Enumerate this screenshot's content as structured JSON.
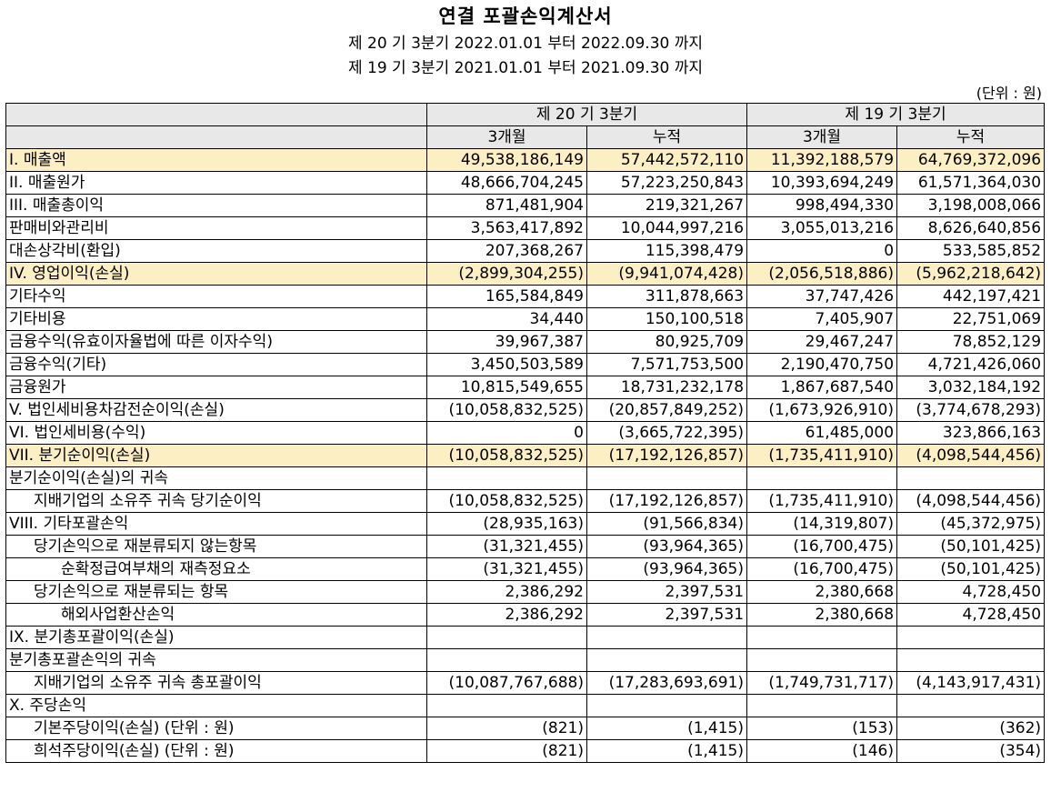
{
  "title": "연결 포괄손익계산서",
  "period_current": "제 20 기 3분기 2022.01.01 부터 2022.09.30 까지",
  "period_prior": "제 19 기 3분기 2021.01.01 부터 2021.09.30 까지",
  "unit": "(단위 : 원)",
  "headers": {
    "current_group": "제 20 기 3분기",
    "prior_group": "제 19 기 3분기",
    "three_month": "3개월",
    "cumulative": "누적"
  },
  "rows": [
    {
      "label": "I. 매출액",
      "values": [
        "49,538,186,149",
        "57,442,572,110",
        "11,392,188,579",
        "64,769,372,096"
      ]
    },
    {
      "label": "II. 매출원가",
      "values": [
        "48,666,704,245",
        "57,223,250,843",
        "10,393,694,249",
        "61,571,364,030"
      ]
    },
    {
      "label": "III. 매출총이익",
      "values": [
        "871,481,904",
        "219,321,267",
        "998,494,330",
        "3,198,008,066"
      ]
    },
    {
      "label": "판매비와관리비",
      "values": [
        "3,563,417,892",
        "10,044,997,216",
        "3,055,013,216",
        "8,626,640,856"
      ]
    },
    {
      "label": "대손상각비(환입)",
      "values": [
        "207,368,267",
        "115,398,479",
        "0",
        "533,585,852"
      ]
    },
    {
      "label": "IV. 영업이익(손실)",
      "values": [
        "(2,899,304,255)",
        "(9,941,074,428)",
        "(2,056,518,886)",
        "(5,962,218,642)"
      ]
    },
    {
      "label": "기타수익",
      "values": [
        "165,584,849",
        "311,878,663",
        "37,747,426",
        "442,197,421"
      ]
    },
    {
      "label": "기타비용",
      "values": [
        "34,440",
        "150,100,518",
        "7,405,907",
        "22,751,069"
      ]
    },
    {
      "label": "금융수익(유효이자율법에 따른 이자수익)",
      "values": [
        "39,967,387",
        "80,925,709",
        "29,467,247",
        "78,852,129"
      ]
    },
    {
      "label": "금융수익(기타)",
      "values": [
        "3,450,503,589",
        "7,571,753,500",
        "2,190,470,750",
        "4,721,426,060"
      ]
    },
    {
      "label": "금융원가",
      "values": [
        "10,815,549,655",
        "18,731,232,178",
        "1,867,687,540",
        "3,032,184,192"
      ]
    },
    {
      "label": "V. 법인세비용차감전순이익(손실)",
      "values": [
        "(10,058,832,525)",
        "(20,857,849,252)",
        "(1,673,926,910)",
        "(3,774,678,293)"
      ]
    },
    {
      "label": "VI. 법인세비용(수익)",
      "values": [
        "0",
        "(3,665,722,395)",
        "61,485,000",
        "323,866,163"
      ]
    },
    {
      "label": "VII. 분기순이익(손실)",
      "values": [
        "(10,058,832,525)",
        "(17,192,126,857)",
        "(1,735,411,910)",
        "(4,098,544,456)"
      ]
    },
    {
      "label": "분기순이익(손실)의 귀속",
      "values": [
        "",
        "",
        "",
        ""
      ]
    },
    {
      "label": "지배기업의 소유주 귀속 당기순이익",
      "values": [
        "(10,058,832,525)",
        "(17,192,126,857)",
        "(1,735,411,910)",
        "(4,098,544,456)"
      ]
    },
    {
      "label": "VIII. 기타포괄손익",
      "values": [
        "(28,935,163)",
        "(91,566,834)",
        "(14,319,807)",
        "(45,372,975)"
      ]
    },
    {
      "label": "당기손익으로 재분류되지 않는항목",
      "values": [
        "(31,321,455)",
        "(93,964,365)",
        "(16,700,475)",
        "(50,101,425)"
      ]
    },
    {
      "label": "순확정급여부채의 재측정요소",
      "values": [
        "(31,321,455)",
        "(93,964,365)",
        "(16,700,475)",
        "(50,101,425)"
      ]
    },
    {
      "label": "당기손익으로 재분류되는 항목",
      "values": [
        "2,386,292",
        "2,397,531",
        "2,380,668",
        "4,728,450"
      ]
    },
    {
      "label": "해외사업환산손익",
      "values": [
        "2,386,292",
        "2,397,531",
        "2,380,668",
        "4,728,450"
      ]
    },
    {
      "label": "IX. 분기총포괄이익(손실)",
      "values": [
        "",
        "",
        "",
        ""
      ]
    },
    {
      "label": "분기총포괄손익의 귀속",
      "values": [
        "",
        "",
        "",
        ""
      ]
    },
    {
      "label": "지배기업의 소유주 귀속 총포괄이익",
      "values": [
        "(10,087,767,688)",
        "(17,283,693,691)",
        "(1,749,731,717)",
        "(4,143,917,431)"
      ]
    },
    {
      "label": "X. 주당손익",
      "values": [
        "",
        "",
        "",
        ""
      ]
    },
    {
      "label": "기본주당이익(손실) (단위 : 원)",
      "values": [
        "(821)",
        "(1,415)",
        "(153)",
        "(362)"
      ]
    },
    {
      "label": "희석주당이익(손실) (단위 : 원)",
      "values": [
        "(821)",
        "(1,415)",
        "(146)",
        "(354)"
      ]
    }
  ],
  "highlight_color": "#fdefc4",
  "header_color": "#e8e8e8"
}
